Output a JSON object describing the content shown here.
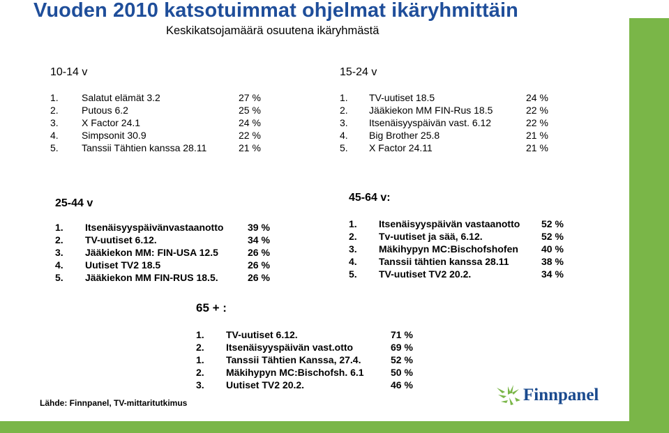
{
  "title": "Vuoden 2010 katsotuimmat ohjelmat ikäryhmittäin",
  "subtitle": "Keskikatsojamäärä osuutena ikäryhmästä",
  "groups": [
    {
      "label": "10-14 v",
      "items": [
        {
          "rank": "1.",
          "program": "Salatut elämät 3.2",
          "share": "27 %"
        },
        {
          "rank": "2.",
          "program": "Putous 6.2",
          "share": "25 %"
        },
        {
          "rank": "3.",
          "program": "X Factor 24.1",
          "share": "24 %"
        },
        {
          "rank": "4.",
          "program": "Simpsonit 30.9",
          "share": "22 %"
        },
        {
          "rank": "5.",
          "program": "Tanssii Tähtien kanssa 28.11",
          "share": "21 %"
        }
      ]
    },
    {
      "label": "15-24 v",
      "items": [
        {
          "rank": "1.",
          "program": "TV-uutiset 18.5",
          "share": "24 %"
        },
        {
          "rank": "2.",
          "program": "Jääkiekon MM FIN-Rus 18.5",
          "share": "22 %"
        },
        {
          "rank": "3.",
          "program": "Itsenäisyyspäivän vast. 6.12",
          "share": "22 %"
        },
        {
          "rank": "4.",
          "program": "Big Brother 25.8",
          "share": "21 %"
        },
        {
          "rank": "5.",
          "program": "X Factor 24.11",
          "share": "21 %"
        }
      ]
    },
    {
      "label": "25-44 v",
      "items": [
        {
          "rank": "1.",
          "program": "Itsenäisyyspäivänvastaanotto",
          "share": "39 %"
        },
        {
          "rank": "2.",
          "program": "TV-uutiset 6.12.",
          "share": "34  %"
        },
        {
          "rank": "3.",
          "program": "Jääkiekon MM: FIN-USA 12.5",
          "share": "26 %"
        },
        {
          "rank": "4.",
          "program": "Uutiset TV2 18.5",
          "share": "26 %"
        },
        {
          "rank": "5.",
          "program": "Jääkiekon MM FIN-RUS 18.5.",
          "share": "26 %"
        }
      ]
    },
    {
      "label": "45-64 v:",
      "items": [
        {
          "rank": "1.",
          "program": "Itsenäisyyspäivän vastaanotto",
          "share": "52 %"
        },
        {
          "rank": "2.",
          "program": "Tv-uutiset ja sää, 6.12.",
          "share": "52 %"
        },
        {
          "rank": "3.",
          "program": "Mäkihypyn MC:Bischofshofen",
          "share": "40 %"
        },
        {
          "rank": "4.",
          "program": "Tanssii tähtien kanssa 28.11",
          "share": "38 %"
        },
        {
          "rank": "5.",
          "program": "TV-uutiset TV2 20.2.",
          "share": "34 %"
        }
      ]
    },
    {
      "label": "65 + :",
      "items": [
        {
          "rank": "1.",
          "program": "TV-uutiset 6.12.",
          "share": "71 %"
        },
        {
          "rank": "2.",
          "program": "Itsenäisyyspäivän vast.otto",
          "share": "69 %"
        },
        {
          "rank": "1.",
          "program": "Tanssii Tähtien Kanssa, 27.4.",
          "share": "52 %"
        },
        {
          "rank": "2.",
          "program": "Mäkihypyn MC:Bischofsh. 6.1",
          "share": "50 %"
        },
        {
          "rank": "3.",
          "program": "Uutiset TV2 20.2.",
          "share": "46 %"
        }
      ]
    }
  ],
  "source": "Lähde: Finnpanel, TV-mittaritutkimus",
  "logo": {
    "text": "Finnpanel",
    "icon": "finnpanel-logo-icon"
  },
  "colors": {
    "title": "#1f4e9a",
    "accent_green": "#7ab648",
    "logo": "#1a4a8e"
  }
}
